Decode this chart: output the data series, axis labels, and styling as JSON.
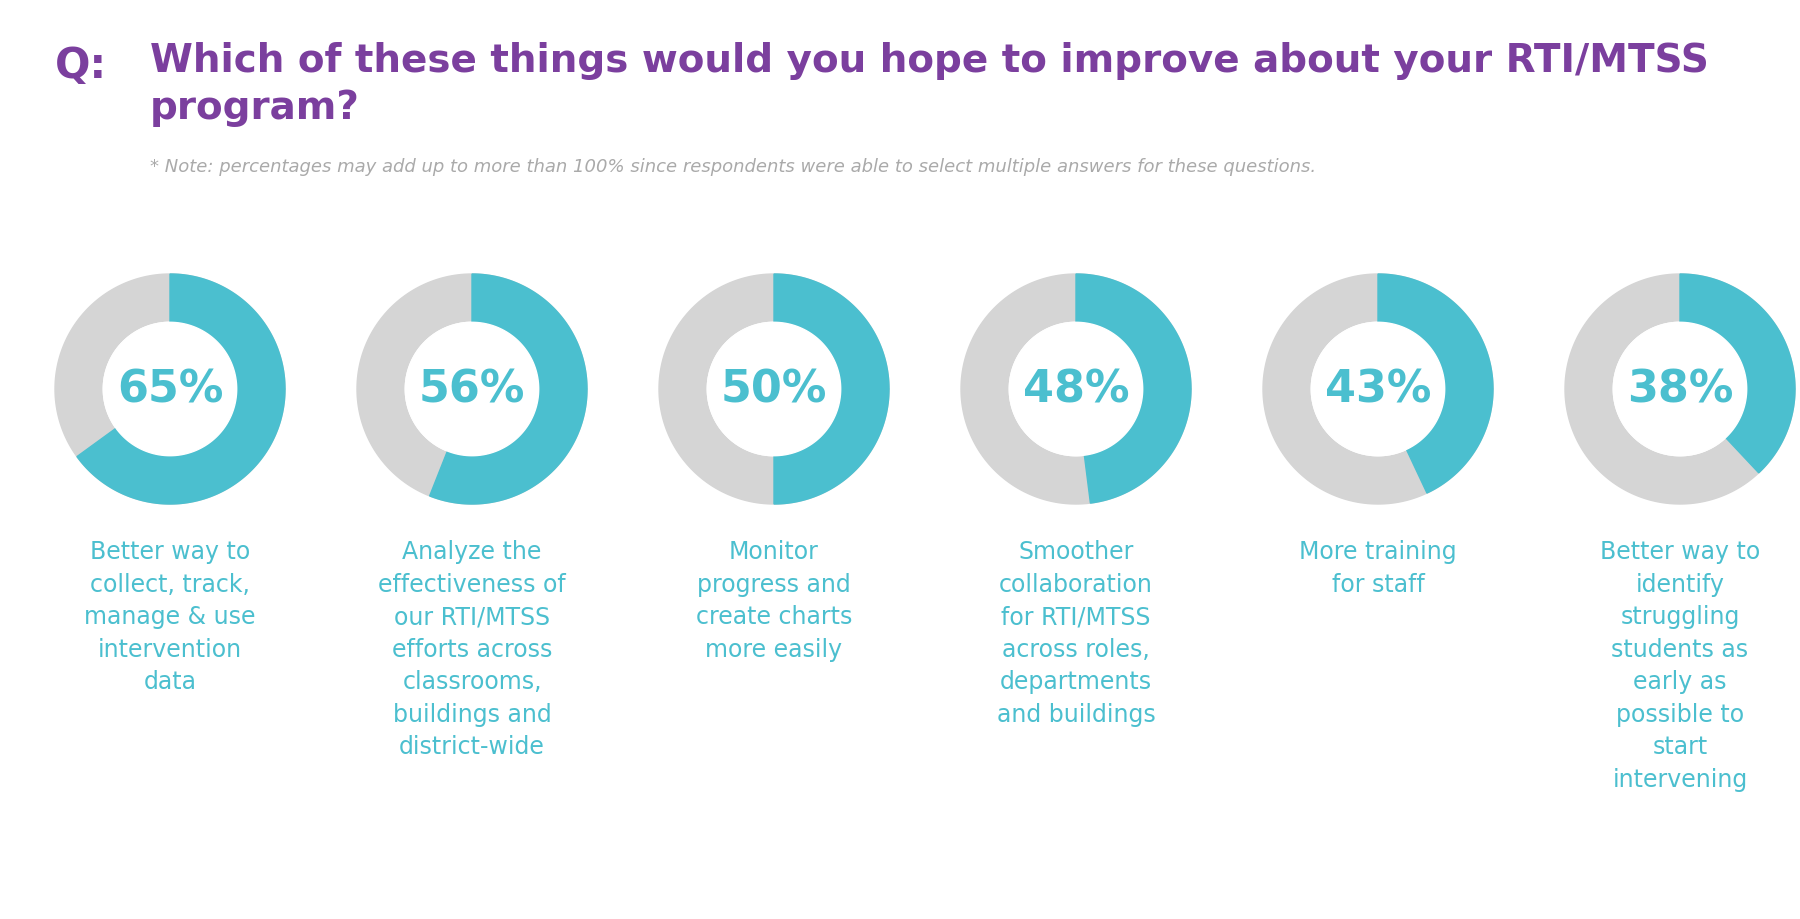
{
  "title_q": "Q:",
  "title_text": "Which of these things would you hope to improve about your RTI/MTSS\nprogram?",
  "note": "* Note: percentages may add up to more than 100% since respondents were able to select multiple answers for these questions.",
  "items": [
    {
      "pct": 65,
      "label": "Better way to\ncollect, track,\nmanage & use\nintervention\ndata"
    },
    {
      "pct": 56,
      "label": "Analyze the\neffectiveness of\nour RTI/MTSS\nefforts across\nclassrooms,\nbuildings and\ndistrict-wide"
    },
    {
      "pct": 50,
      "label": "Monitor\nprogress and\ncreate charts\nmore easily"
    },
    {
      "pct": 48,
      "label": "Smoother\ncollaboration\nfor RTI/MTSS\nacross roles,\ndepartments\nand buildings"
    },
    {
      "pct": 43,
      "label": "More training\nfor staff"
    },
    {
      "pct": 38,
      "label": "Better way to\nidentify\nstruggling\nstudents as\nearly as\npossible to\nstart\nintervening"
    }
  ],
  "color_filled": "#4BBFCF",
  "color_empty": "#D5D5D5",
  "color_title_q": "#7B3F9E",
  "color_title_text": "#7B3F9E",
  "color_note": "#AAAAAA",
  "color_label": "#4BBFCF",
  "color_pct_text": "#4BBFCF",
  "bg_color": "#FFFFFF",
  "pct_fontsize": 32,
  "label_fontsize": 17,
  "title_fontsize": 28,
  "q_fontsize": 30,
  "note_fontsize": 13,
  "donut_outer_r": 1.0,
  "donut_inner_r": 0.58
}
